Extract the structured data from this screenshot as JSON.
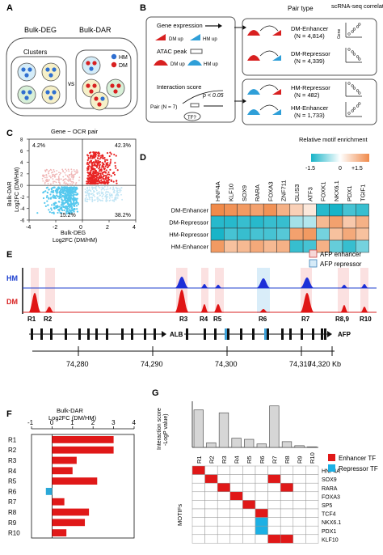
{
  "panel_letters": [
    "A",
    "B",
    "C",
    "D",
    "E",
    "F",
    "G"
  ],
  "panelA": {
    "bulk_deg": "Bulk-DEG",
    "bulk_dar": "Bulk-DAR",
    "clusters": "Clusters",
    "vs": "vs",
    "legend": [
      {
        "label": "HM",
        "color": "#2f6fd0"
      },
      {
        "label": "DM",
        "color": "#d82020"
      }
    ]
  },
  "panelB": {
    "pair_type_header": "Pair type",
    "sc_header": "scRNA-seq correlation",
    "gene_expression": "Gene expression",
    "dm_up": "DM up",
    "hm_up": "HM up",
    "atac_peak": "ATAC peak",
    "interaction_score": "Interaction score",
    "pair": "Pair (N = 7)",
    "pvalue": "p < 0.05",
    "tf": "TF?",
    "axis_gene": "Gene",
    "axis_tf": "TF",
    "pairs": [
      {
        "type": "DM-Enhancer",
        "n": "(N = 4,814)"
      },
      {
        "type": "DM-Repressor",
        "n": "(N = 4,339)"
      },
      {
        "type": "HM-Repressor",
        "n": "(N = 482)"
      },
      {
        "type": "HM-Enhancer",
        "n": "(N = 1,733)"
      }
    ]
  },
  "panelC": {
    "title": "Gene ~ OCR pair",
    "xlabel1": "Bulk-DEG",
    "xlabel2": "Log2FC (DM/HM)",
    "ylabel1": "Bulk-DAR",
    "ylabel2": "Log2FC (DM/HM)",
    "quadrants": [
      "4.2%",
      "42.3%",
      "15.2%",
      "38.2%"
    ],
    "xticks": [
      "-4",
      "-2",
      "0",
      "2",
      "4"
    ],
    "yticks": [
      "8",
      "6",
      "4",
      "2",
      "0",
      "-2",
      "-4",
      "-6"
    ]
  },
  "panelD": {
    "legend_title": "Relative motif enrichment",
    "legend_ticks": [
      "-1.5",
      "0",
      "+1.5"
    ],
    "motifs": [
      "HNF4A",
      "KLF10",
      "SOX9",
      "RARA",
      "FOXA3",
      "ZNF711",
      "GLIS3",
      "ATF3",
      "FOXK1",
      "NKX6.1",
      "PDX1",
      "TGIF1"
    ],
    "rows": [
      "DM-Enhancer",
      "DM-Repressor",
      "HM-Repressor",
      "HM-Enhancer"
    ],
    "values": [
      [
        1.5,
        1.4,
        1.3,
        1.2,
        1.4,
        1.0,
        0.6,
        0.3,
        -1.4,
        -1.5,
        -1.2,
        -1.3
      ],
      [
        -1.4,
        -1.4,
        -1.3,
        -1.4,
        -1.3,
        -1.3,
        -0.6,
        -0.5,
        0.9,
        1.2,
        0.7,
        1.0
      ],
      [
        -1.5,
        -1.2,
        -1.3,
        -1.2,
        -1.2,
        -1.1,
        1.2,
        1.3,
        -0.9,
        0.8,
        1.1,
        0.8
      ],
      [
        1.3,
        0.8,
        0.9,
        1.1,
        0.9,
        1.0,
        -1.3,
        -1.2,
        1.0,
        -1.0,
        -1.3,
        -0.9
      ]
    ]
  },
  "panelE": {
    "legend": [
      {
        "label": "AFP enhancer",
        "color": "#f6c6c6"
      },
      {
        "label": "AFP repressor",
        "color": "#bcdcf4"
      }
    ],
    "track_hm": "HM",
    "track_dm": "DM",
    "regions": [
      "R1",
      "R2",
      "R3",
      "R4",
      "R5",
      "R6",
      "R7",
      "R8,9",
      "R10"
    ],
    "gene_alb": "ALB",
    "gene_afp": "AFP",
    "coords": [
      "74,280",
      "74,290",
      "74,300",
      "74,310",
      "74,320 Kb"
    ]
  },
  "panelF": {
    "xlabel1": "Bulk-DAR",
    "xlabel2": "Log2FC (DM/HM)",
    "xticks": [
      "-1",
      "0",
      "1",
      "2",
      "3",
      "4"
    ],
    "chart_data": {
      "type": "bar",
      "categories": [
        "R1",
        "R2",
        "R3",
        "R4",
        "R5",
        "R6",
        "R7",
        "R8",
        "R9",
        "R10"
      ],
      "values": [
        3.0,
        3.0,
        1.2,
        1.0,
        2.2,
        -0.3,
        0.6,
        1.8,
        1.6,
        0.7
      ],
      "xlim": [
        -1,
        4
      ]
    }
  },
  "panelG": {
    "ylabel1": "Interaction score",
    "ylabel2": "-LogP value)",
    "legend": [
      {
        "label": "Enhancer TF",
        "color": "#e01818"
      },
      {
        "label": "Repressor TF",
        "color": "#1cb0e4"
      }
    ],
    "ylabel_motifs": "MOTIFs",
    "regions": [
      "R1",
      "R2",
      "R3",
      "R4",
      "R5",
      "R6",
      "R7",
      "R8",
      "R9",
      "R10"
    ],
    "scores": [
      65,
      8,
      60,
      16,
      14,
      6,
      72,
      10,
      3,
      1
    ],
    "motifs": [
      "HNF4A",
      "SOX9",
      "RARA",
      "FOXA3",
      "SP5",
      "TCF4",
      "NKX6.1",
      "PDX1",
      "KLF10"
    ],
    "grid": [
      [
        1,
        0,
        0,
        0,
        0,
        0,
        0,
        0,
        0,
        0
      ],
      [
        0,
        1,
        0,
        0,
        0,
        0,
        1,
        0,
        0,
        0
      ],
      [
        0,
        0,
        1,
        0,
        0,
        0,
        0,
        1,
        0,
        0
      ],
      [
        0,
        0,
        0,
        1,
        0,
        0,
        0,
        0,
        0,
        0
      ],
      [
        0,
        0,
        0,
        0,
        1,
        0,
        0,
        0,
        0,
        0
      ],
      [
        0,
        0,
        0,
        0,
        0,
        1,
        0,
        0,
        0,
        0
      ],
      [
        0,
        0,
        0,
        0,
        0,
        2,
        0,
        0,
        0,
        0
      ],
      [
        0,
        0,
        0,
        0,
        0,
        2,
        0,
        0,
        0,
        0
      ],
      [
        0,
        0,
        0,
        0,
        0,
        0,
        1,
        1,
        0,
        0
      ]
    ]
  }
}
